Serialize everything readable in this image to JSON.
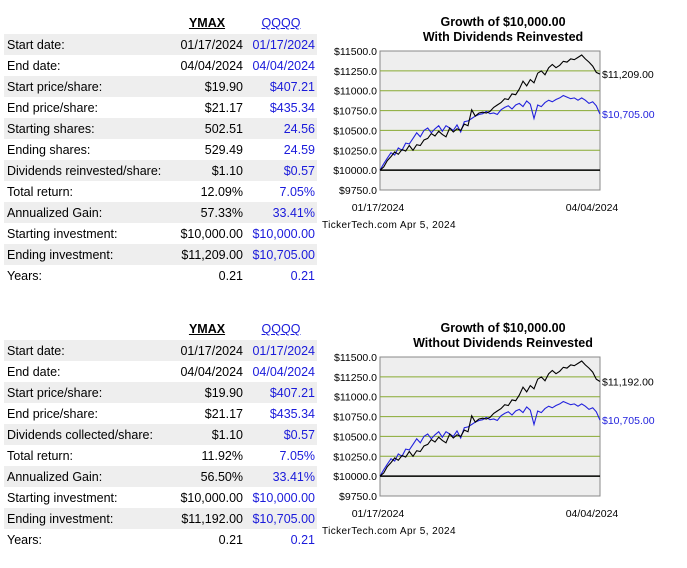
{
  "tables": [
    {
      "header": {
        "ymax": "YMAX",
        "qqqq": "QQQQ"
      },
      "rows": [
        {
          "label": "Start date:",
          "ymax": "01/17/2024",
          "qqqq": "01/17/2024"
        },
        {
          "label": "End date:",
          "ymax": "04/04/2024",
          "qqqq": "04/04/2024"
        },
        {
          "label": "Start price/share:",
          "ymax": "$19.90",
          "qqqq": "$407.21"
        },
        {
          "label": "End price/share:",
          "ymax": "$21.17",
          "qqqq": "$435.34"
        },
        {
          "label": "Starting shares:",
          "ymax": "502.51",
          "qqqq": "24.56"
        },
        {
          "label": "Ending shares:",
          "ymax": "529.49",
          "qqqq": "24.59"
        },
        {
          "label": "Dividends reinvested/share:",
          "ymax": "$1.10",
          "qqqq": "$0.57"
        },
        {
          "label": "Total return:",
          "ymax": "12.09%",
          "qqqq": "7.05%"
        },
        {
          "label": "Annualized Gain:",
          "ymax": "57.33%",
          "qqqq": "33.41%"
        },
        {
          "label": "Starting investment:",
          "ymax": "$10,000.00",
          "qqqq": "$10,000.00"
        },
        {
          "label": "Ending investment:",
          "ymax": "$11,209.00",
          "qqqq": "$10,705.00"
        },
        {
          "label": "Years:",
          "ymax": "0.21",
          "qqqq": "0.21"
        }
      ]
    },
    {
      "header": {
        "ymax": "YMAX",
        "qqqq": "QQQQ"
      },
      "rows": [
        {
          "label": "Start date:",
          "ymax": "01/17/2024",
          "qqqq": "01/17/2024"
        },
        {
          "label": "End date:",
          "ymax": "04/04/2024",
          "qqqq": "04/04/2024"
        },
        {
          "label": "Start price/share:",
          "ymax": "$19.90",
          "qqqq": "$407.21"
        },
        {
          "label": "End price/share:",
          "ymax": "$21.17",
          "qqqq": "$435.34"
        },
        {
          "label": "Dividends collected/share:",
          "ymax": "$1.10",
          "qqqq": "$0.57"
        },
        {
          "label": "Total return:",
          "ymax": "11.92%",
          "qqqq": "7.05%"
        },
        {
          "label": "Annualized Gain:",
          "ymax": "56.50%",
          "qqqq": "33.41%"
        },
        {
          "label": "Starting investment:",
          "ymax": "$10,000.00",
          "qqqq": "$10,000.00"
        },
        {
          "label": "Ending investment:",
          "ymax": "$11,192.00",
          "qqqq": "$10,705.00"
        },
        {
          "label": "Years:",
          "ymax": "0.21",
          "qqqq": "0.21"
        }
      ]
    }
  ],
  "chart_data": [
    {
      "type": "line",
      "title": "Growth of $10,000.00",
      "subtitle": "With Dividends Reinvested",
      "credit": "TickerTech.com  Apr 5, 2024",
      "x_labels": [
        "01/17/2024",
        "04/04/2024"
      ],
      "yticks": [
        "$11500.0",
        "$11250.0",
        "$11000.0",
        "$10750.0",
        "$10500.0",
        "$10250.0",
        "$10000.0",
        "$9750.0"
      ],
      "ylim": [
        9750,
        11500
      ],
      "grid": true,
      "baseline": 10000,
      "colors": {
        "ymax": "#000000",
        "qqqq": "#2222dd",
        "plot_bg": "#eeeeee",
        "grid": "#88aa33"
      },
      "end_labels": {
        "ymax": "$11,209.00",
        "qqqq": "$10,705.00"
      },
      "series": [
        {
          "key": "ymax",
          "values": [
            10000,
            10040,
            10120,
            10170,
            10230,
            10200,
            10260,
            10240,
            10310,
            10250,
            10320,
            10310,
            10380,
            10400,
            10460,
            10430,
            10490,
            10450,
            10420,
            10530,
            10480,
            10520,
            10500,
            10580,
            10560,
            10760,
            10680,
            10720,
            10730,
            10720,
            10740,
            10790,
            10820,
            10850,
            10900,
            10890,
            10960,
            10950,
            11020,
            11120,
            11060,
            11140,
            11100,
            11220,
            11250,
            11200,
            11290,
            11330,
            11290,
            11320,
            11370,
            11360,
            11400,
            11390,
            11420,
            11450,
            11400,
            11360,
            11310,
            11230,
            11209
          ]
        },
        {
          "key": "qqqq",
          "values": [
            10000,
            10080,
            10150,
            10220,
            10190,
            10280,
            10250,
            10340,
            10330,
            10400,
            10470,
            10420,
            10500,
            10530,
            10470,
            10520,
            10560,
            10490,
            10560,
            10530,
            10500,
            10570,
            10480,
            10610,
            10620,
            10650,
            10680,
            10700,
            10710,
            10740,
            10710,
            10720,
            10700,
            10760,
            10790,
            10810,
            10770,
            10820,
            10840,
            10800,
            10870,
            10830,
            10650,
            10820,
            10800,
            10850,
            10880,
            10860,
            10890,
            10910,
            10940,
            10920,
            10900,
            10910,
            10880,
            10910,
            10880,
            10840,
            10860,
            10810,
            10705
          ]
        }
      ]
    },
    {
      "type": "line",
      "title": "Growth of $10,000.00",
      "subtitle": "Without Dividends Reinvested",
      "credit": "TickerTech.com  Apr 5, 2024",
      "x_labels": [
        "01/17/2024",
        "04/04/2024"
      ],
      "yticks": [
        "$11500.0",
        "$11250.0",
        "$11000.0",
        "$10750.0",
        "$10500.0",
        "$10250.0",
        "$10000.0",
        "$9750.0"
      ],
      "ylim": [
        9750,
        11500
      ],
      "grid": true,
      "baseline": 10000,
      "colors": {
        "ymax": "#000000",
        "qqqq": "#2222dd",
        "plot_bg": "#eeeeee",
        "grid": "#88aa33"
      },
      "end_labels": {
        "ymax": "$11,192.00",
        "qqqq": "$10,705.00"
      },
      "series": [
        {
          "key": "ymax",
          "values": [
            10000,
            10040,
            10120,
            10170,
            10230,
            10200,
            10260,
            10240,
            10310,
            10250,
            10320,
            10310,
            10380,
            10400,
            10460,
            10430,
            10490,
            10450,
            10420,
            10530,
            10480,
            10520,
            10500,
            10580,
            10560,
            10760,
            10680,
            10720,
            10730,
            10720,
            10740,
            10790,
            10820,
            10850,
            10900,
            10890,
            10960,
            10950,
            11020,
            11120,
            11060,
            11140,
            11100,
            11220,
            11250,
            11200,
            11290,
            11330,
            11290,
            11320,
            11370,
            11360,
            11400,
            11390,
            11420,
            11450,
            11400,
            11360,
            11310,
            11220,
            11192
          ]
        },
        {
          "key": "qqqq",
          "values": [
            10000,
            10080,
            10150,
            10220,
            10190,
            10280,
            10250,
            10340,
            10330,
            10400,
            10470,
            10420,
            10500,
            10530,
            10470,
            10520,
            10560,
            10490,
            10560,
            10530,
            10500,
            10570,
            10480,
            10610,
            10620,
            10650,
            10680,
            10700,
            10710,
            10740,
            10710,
            10720,
            10700,
            10760,
            10790,
            10810,
            10770,
            10820,
            10840,
            10800,
            10870,
            10830,
            10650,
            10820,
            10800,
            10850,
            10880,
            10860,
            10890,
            10910,
            10940,
            10920,
            10900,
            10910,
            10880,
            10910,
            10880,
            10840,
            10860,
            10810,
            10705
          ]
        }
      ]
    }
  ]
}
